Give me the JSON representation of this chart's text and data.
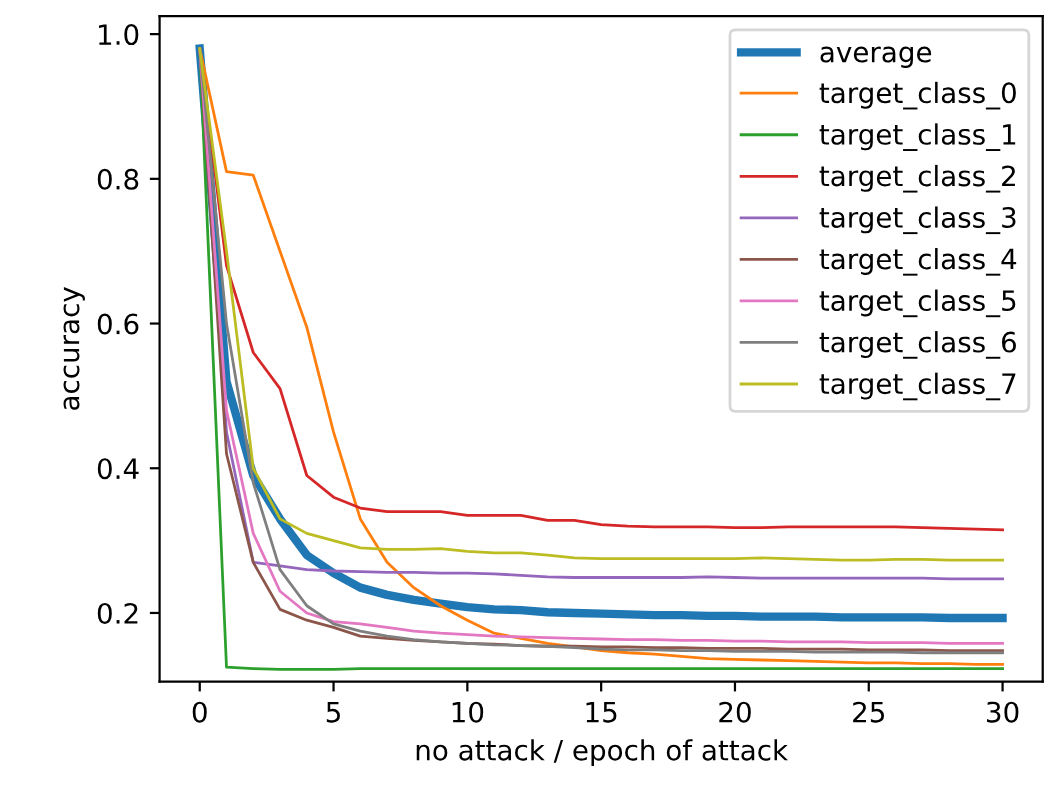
{
  "chart_data": {
    "type": "line",
    "xlabel": "no attack / epoch of attack",
    "ylabel": "accuracy",
    "x": [
      0,
      1,
      2,
      3,
      4,
      5,
      6,
      7,
      8,
      9,
      10,
      11,
      12,
      13,
      14,
      15,
      16,
      17,
      18,
      19,
      20,
      21,
      22,
      23,
      24,
      25,
      26,
      27,
      28,
      29,
      30
    ],
    "xlim": [
      -1.5,
      31.5
    ],
    "xticks": [
      0,
      5,
      10,
      15,
      20,
      25,
      30
    ],
    "ylim": [
      0.105,
      1.025
    ],
    "yticks": [
      {
        "value": 0.2,
        "label": "0.2"
      },
      {
        "value": 0.4,
        "label": "0.4"
      },
      {
        "value": 0.6,
        "label": "0.6"
      },
      {
        "value": 0.8,
        "label": "0.8"
      },
      {
        "value": 1.0,
        "label": "1.0"
      }
    ],
    "grid": false,
    "legend": "top right",
    "marker": "none",
    "line_style": "solid",
    "series": [
      {
        "name": "average",
        "color": "#1f77b4",
        "values": [
          0.98,
          0.52,
          0.39,
          0.33,
          0.28,
          0.255,
          0.235,
          0.225,
          0.218,
          0.213,
          0.208,
          0.205,
          0.204,
          0.201,
          0.2,
          0.199,
          0.198,
          0.197,
          0.197,
          0.196,
          0.196,
          0.195,
          0.195,
          0.195,
          0.194,
          0.194,
          0.194,
          0.194,
          0.193,
          0.193,
          0.193
        ]
      },
      {
        "name": "target_class_0",
        "color": "#ff7f0e",
        "values": [
          0.98,
          0.81,
          0.805,
          0.7,
          0.595,
          0.45,
          0.33,
          0.27,
          0.235,
          0.21,
          0.19,
          0.172,
          0.165,
          0.158,
          0.153,
          0.148,
          0.145,
          0.143,
          0.14,
          0.137,
          0.136,
          0.135,
          0.134,
          0.133,
          0.132,
          0.131,
          0.131,
          0.13,
          0.13,
          0.129,
          0.129
        ]
      },
      {
        "name": "target_class_1",
        "color": "#2ca02c",
        "values": [
          0.98,
          0.125,
          0.123,
          0.122,
          0.122,
          0.122,
          0.123,
          0.123,
          0.123,
          0.123,
          0.123,
          0.123,
          0.123,
          0.123,
          0.123,
          0.123,
          0.123,
          0.123,
          0.123,
          0.123,
          0.123,
          0.123,
          0.123,
          0.123,
          0.123,
          0.123,
          0.123,
          0.123,
          0.123,
          0.123,
          0.123
        ]
      },
      {
        "name": "target_class_2",
        "color": "#d62728",
        "values": [
          0.98,
          0.68,
          0.56,
          0.51,
          0.39,
          0.36,
          0.345,
          0.34,
          0.34,
          0.34,
          0.335,
          0.335,
          0.335,
          0.328,
          0.328,
          0.322,
          0.32,
          0.319,
          0.319,
          0.319,
          0.318,
          0.318,
          0.319,
          0.319,
          0.319,
          0.319,
          0.319,
          0.318,
          0.317,
          0.316,
          0.315
        ]
      },
      {
        "name": "target_class_3",
        "color": "#9467bd",
        "values": [
          0.98,
          0.45,
          0.27,
          0.265,
          0.26,
          0.258,
          0.257,
          0.256,
          0.256,
          0.255,
          0.255,
          0.254,
          0.252,
          0.25,
          0.249,
          0.249,
          0.249,
          0.249,
          0.249,
          0.25,
          0.249,
          0.248,
          0.248,
          0.248,
          0.248,
          0.248,
          0.248,
          0.248,
          0.247,
          0.247,
          0.247
        ]
      },
      {
        "name": "target_class_4",
        "color": "#8c564b",
        "values": [
          0.98,
          0.42,
          0.27,
          0.205,
          0.19,
          0.18,
          0.168,
          0.165,
          0.162,
          0.16,
          0.158,
          0.157,
          0.155,
          0.154,
          0.154,
          0.153,
          0.153,
          0.152,
          0.152,
          0.151,
          0.151,
          0.151,
          0.15,
          0.15,
          0.15,
          0.149,
          0.149,
          0.149,
          0.148,
          0.148,
          0.148
        ]
      },
      {
        "name": "target_class_5",
        "color": "#e377c2",
        "values": [
          0.98,
          0.48,
          0.31,
          0.23,
          0.2,
          0.188,
          0.185,
          0.18,
          0.175,
          0.172,
          0.17,
          0.168,
          0.167,
          0.166,
          0.165,
          0.164,
          0.163,
          0.163,
          0.162,
          0.162,
          0.161,
          0.161,
          0.16,
          0.16,
          0.16,
          0.159,
          0.159,
          0.159,
          0.158,
          0.158,
          0.158
        ]
      },
      {
        "name": "target_class_6",
        "color": "#7f7f7f",
        "values": [
          0.98,
          0.6,
          0.38,
          0.26,
          0.21,
          0.185,
          0.175,
          0.168,
          0.163,
          0.16,
          0.158,
          0.156,
          0.155,
          0.154,
          0.152,
          0.15,
          0.149,
          0.149,
          0.148,
          0.148,
          0.147,
          0.147,
          0.147,
          0.146,
          0.146,
          0.146,
          0.146,
          0.145,
          0.145,
          0.145,
          0.145
        ]
      },
      {
        "name": "target_class_7",
        "color": "#bcbd22",
        "values": [
          0.98,
          0.7,
          0.4,
          0.33,
          0.31,
          0.3,
          0.29,
          0.288,
          0.288,
          0.289,
          0.285,
          0.283,
          0.283,
          0.28,
          0.276,
          0.275,
          0.275,
          0.275,
          0.275,
          0.275,
          0.275,
          0.276,
          0.275,
          0.274,
          0.273,
          0.273,
          0.274,
          0.274,
          0.273,
          0.273,
          0.273
        ]
      }
    ]
  }
}
